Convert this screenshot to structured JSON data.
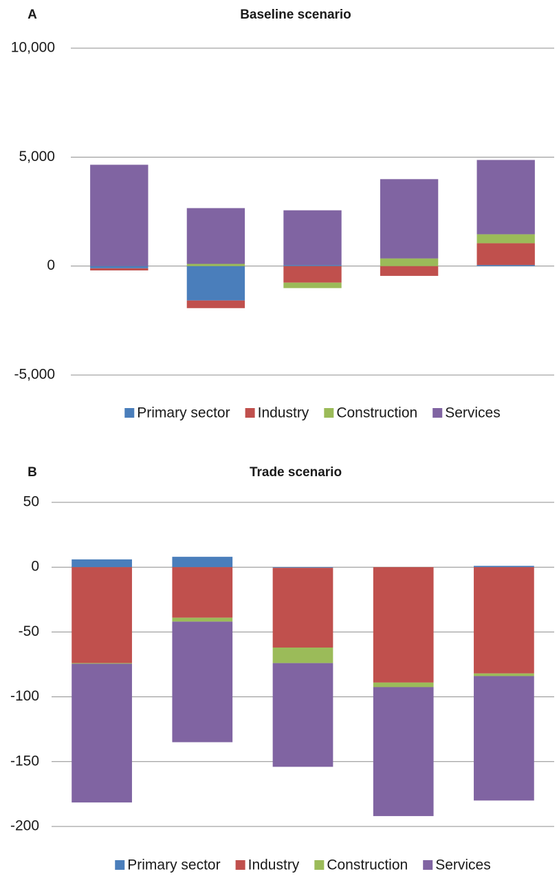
{
  "chart_data": [
    {
      "type": "bar",
      "stacked": true,
      "panel_label": "A",
      "title": "Baseline scenario",
      "categories": [
        null,
        null,
        null,
        null,
        null
      ],
      "series": [
        {
          "name": "Primary sector",
          "color": "#4a7ebb",
          "values": [
            -100,
            -1580,
            50,
            0,
            50
          ]
        },
        {
          "name": "Industry",
          "color": "#c0504d",
          "values": [
            -100,
            -350,
            -760,
            -450,
            1000
          ]
        },
        {
          "name": "Construction",
          "color": "#9bbb59",
          "values": [
            0,
            100,
            -250,
            350,
            410
          ]
        },
        {
          "name": "Services",
          "color": "#8064a2",
          "values": [
            4650,
            2560,
            2510,
            3640,
            3410
          ]
        }
      ],
      "ylim": [
        -5000,
        10000
      ],
      "yticks": [
        {
          "value": -5000,
          "label": "-5,000"
        },
        0,
        {
          "value": 5000,
          "label": "5,000"
        },
        {
          "value": 10000,
          "label": "10,000"
        }
      ],
      "grid": true,
      "legend": "bottom"
    },
    {
      "type": "bar",
      "stacked": true,
      "panel_label": "B",
      "title": "Trade scenario",
      "categories": [
        null,
        null,
        null,
        null,
        null
      ],
      "series": [
        {
          "name": "Primary sector",
          "color": "#4a7ebb",
          "values": [
            6,
            8,
            -0.5,
            0,
            1
          ]
        },
        {
          "name": "Industry",
          "color": "#c0504d",
          "values": [
            -74,
            -39,
            -61.5,
            -89,
            -82
          ]
        },
        {
          "name": "Construction",
          "color": "#9bbb59",
          "values": [
            -0.5,
            -3,
            -12,
            -3.5,
            -2
          ]
        },
        {
          "name": "Services",
          "color": "#8064a2",
          "values": [
            -107,
            -93,
            -80,
            -99.5,
            -96
          ]
        }
      ],
      "ylim": [
        -200,
        50
      ],
      "yticks": [
        -200,
        -150,
        -100,
        -50,
        0,
        50
      ],
      "grid": true,
      "legend": "bottom"
    }
  ]
}
